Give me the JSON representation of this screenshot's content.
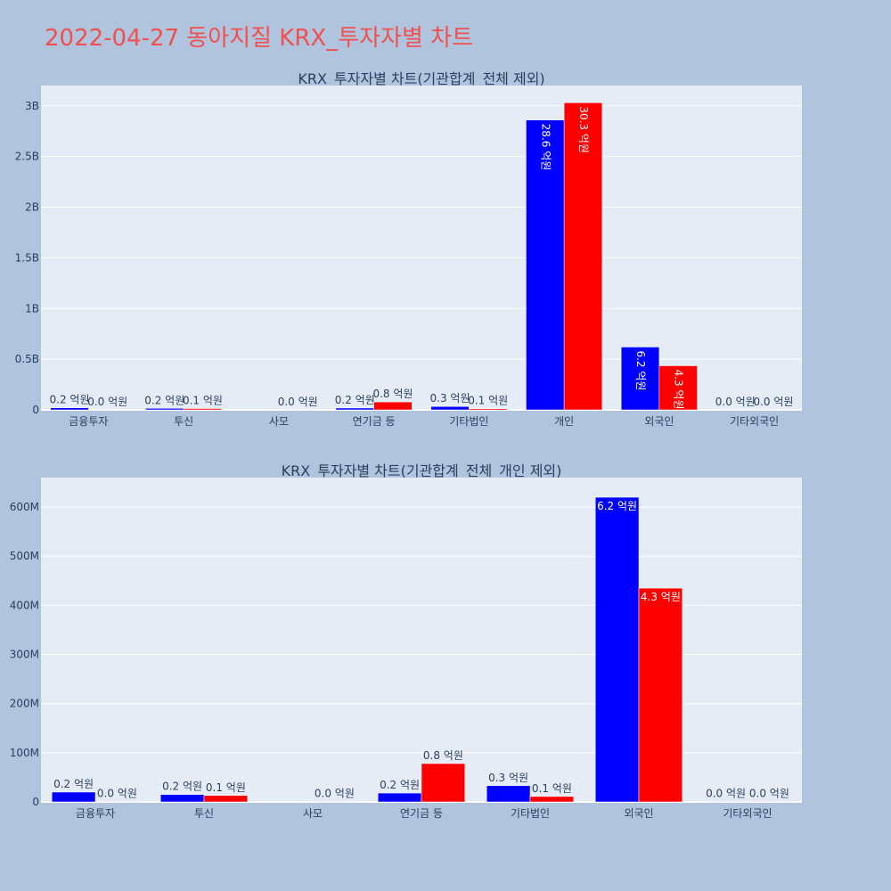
{
  "title": "2022-04-27 동아지질 KRX_투자자별 차트",
  "colors": {
    "background": "#b0c4de",
    "plot_bg": "#e5ecf6",
    "title": "#ef5050",
    "buy": "#0000ff",
    "sell": "#ff0000",
    "text": "#2a3f5f"
  },
  "chart_data": [
    {
      "type": "bar",
      "title": "KRX_투자자별 차트(기관합계_전체 제외)",
      "categories": [
        "금융투자",
        "투신",
        "사모",
        "연기금 등",
        "기타법인",
        "개인",
        "외국인",
        "기타외국인"
      ],
      "ylim": [
        0,
        3200000000
      ],
      "yticks": [
        0,
        500000000,
        1000000000,
        1500000000,
        2000000000,
        2500000000,
        3000000000
      ],
      "ytick_labels": [
        "0",
        "0.5B",
        "1B",
        "1.5B",
        "2B",
        "2.5B",
        "3B"
      ],
      "grid": true,
      "series": [
        {
          "color": "#0000ff",
          "values": [
            20000000,
            15000000,
            0,
            18000000,
            33000000,
            2860000000,
            620000000,
            1000000
          ],
          "labels": [
            "0.2 억원",
            "0.2 억원",
            "",
            "0.2 억원",
            "0.3 억원",
            "28.6 억원",
            "6.2 억원",
            "0.0 억원"
          ]
        },
        {
          "color": "#ff0000",
          "values": [
            1000000,
            13000000,
            1000000,
            78000000,
            11000000,
            3030000000,
            435000000,
            1000000
          ],
          "labels": [
            "0.0 억원",
            "0.1 억원",
            "0.0 억원",
            "0.8 억원",
            "0.1 억원",
            "30.3 억원",
            "4.3 억원",
            "0.0 억원"
          ]
        }
      ]
    },
    {
      "type": "bar",
      "title": "KRX_투자자별 차트(기관합계_전체_개인 제외)",
      "categories": [
        "금융투자",
        "투신",
        "사모",
        "연기금 등",
        "기타법인",
        "외국인",
        "기타외국인"
      ],
      "ylim": [
        0,
        660000000
      ],
      "yticks": [
        0,
        100000000,
        200000000,
        300000000,
        400000000,
        500000000,
        600000000
      ],
      "ytick_labels": [
        "0",
        "100M",
        "200M",
        "300M",
        "400M",
        "500M",
        "600M"
      ],
      "grid": true,
      "series": [
        {
          "color": "#0000ff",
          "values": [
            20000000,
            15000000,
            0,
            18000000,
            33000000,
            620000000,
            1000000
          ],
          "labels": [
            "0.2 억원",
            "0.2 억원",
            "",
            "0.2 억원",
            "0.3 억원",
            "6.2 억원",
            "0.0 억원"
          ]
        },
        {
          "color": "#ff0000",
          "values": [
            1000000,
            13000000,
            1000000,
            78000000,
            11000000,
            435000000,
            1000000
          ],
          "labels": [
            "0.0 억원",
            "0.1 억원",
            "0.0 억원",
            "0.8 억원",
            "0.1 억원",
            "4.3 억원",
            "0.0 억원"
          ]
        }
      ]
    }
  ]
}
